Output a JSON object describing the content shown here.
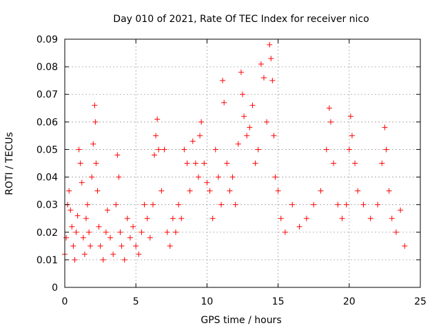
{
  "chart_data": {
    "type": "scatter",
    "title": "Day 010 of 2021, Rate Of TEC Index for receiver nico",
    "xlabel": "GPS time / hours",
    "ylabel": "ROTI / TECUs",
    "xlim": [
      0,
      25
    ],
    "ylim": [
      0,
      0.09
    ],
    "x_ticks": [
      0,
      5,
      10,
      15,
      20,
      25
    ],
    "x_tick_labels": [
      "0",
      "5",
      "10",
      "15",
      "20",
      "25"
    ],
    "y_ticks": [
      0,
      0.01,
      0.02,
      0.03,
      0.04,
      0.05,
      0.06,
      0.07,
      0.08,
      0.09
    ],
    "y_tick_labels": [
      "0",
      "0.01",
      "0.02",
      "0.03",
      "0.04",
      "0.05",
      "0.06",
      "0.07",
      "0.08",
      "0.09"
    ],
    "grid": true,
    "marker": "+",
    "marker_color": "#ff0000",
    "series": [
      {
        "points": [
          [
            0.0,
            0.012
          ],
          [
            0.1,
            0.018
          ],
          [
            0.2,
            0.03
          ],
          [
            0.3,
            0.035
          ],
          [
            0.4,
            0.028
          ],
          [
            0.5,
            0.022
          ],
          [
            0.6,
            0.015
          ],
          [
            0.7,
            0.01
          ],
          [
            0.8,
            0.02
          ],
          [
            0.9,
            0.026
          ],
          [
            1.0,
            0.05
          ],
          [
            1.1,
            0.045
          ],
          [
            1.2,
            0.038
          ],
          [
            1.3,
            0.018
          ],
          [
            1.4,
            0.012
          ],
          [
            1.5,
            0.025
          ],
          [
            1.6,
            0.03
          ],
          [
            1.7,
            0.02
          ],
          [
            1.8,
            0.015
          ],
          [
            1.9,
            0.04
          ],
          [
            2.0,
            0.052
          ],
          [
            2.1,
            0.066
          ],
          [
            2.15,
            0.06
          ],
          [
            2.2,
            0.045
          ],
          [
            2.3,
            0.035
          ],
          [
            2.4,
            0.022
          ],
          [
            2.5,
            0.015
          ],
          [
            2.7,
            0.01
          ],
          [
            2.9,
            0.02
          ],
          [
            3.0,
            0.028
          ],
          [
            3.2,
            0.018
          ],
          [
            3.4,
            0.012
          ],
          [
            3.6,
            0.03
          ],
          [
            3.7,
            0.048
          ],
          [
            3.8,
            0.04
          ],
          [
            3.9,
            0.02
          ],
          [
            4.0,
            0.015
          ],
          [
            4.2,
            0.01
          ],
          [
            4.4,
            0.025
          ],
          [
            4.6,
            0.018
          ],
          [
            4.8,
            0.022
          ],
          [
            5.0,
            0.015
          ],
          [
            5.2,
            0.012
          ],
          [
            5.4,
            0.02
          ],
          [
            5.6,
            0.03
          ],
          [
            5.8,
            0.025
          ],
          [
            6.0,
            0.018
          ],
          [
            6.2,
            0.03
          ],
          [
            6.3,
            0.048
          ],
          [
            6.4,
            0.055
          ],
          [
            6.5,
            0.061
          ],
          [
            6.6,
            0.05
          ],
          [
            6.8,
            0.035
          ],
          [
            7.0,
            0.05
          ],
          [
            7.2,
            0.02
          ],
          [
            7.4,
            0.015
          ],
          [
            7.6,
            0.025
          ],
          [
            7.8,
            0.02
          ],
          [
            8.0,
            0.03
          ],
          [
            8.2,
            0.025
          ],
          [
            8.4,
            0.05
          ],
          [
            8.6,
            0.045
          ],
          [
            8.8,
            0.035
          ],
          [
            9.0,
            0.053
          ],
          [
            9.2,
            0.045
          ],
          [
            9.4,
            0.04
          ],
          [
            9.5,
            0.055
          ],
          [
            9.6,
            0.06
          ],
          [
            9.8,
            0.045
          ],
          [
            10.0,
            0.038
          ],
          [
            10.2,
            0.035
          ],
          [
            10.4,
            0.025
          ],
          [
            10.6,
            0.05
          ],
          [
            10.8,
            0.04
          ],
          [
            11.0,
            0.03
          ],
          [
            11.1,
            0.075
          ],
          [
            11.2,
            0.067
          ],
          [
            11.4,
            0.045
          ],
          [
            11.6,
            0.035
          ],
          [
            11.8,
            0.04
          ],
          [
            12.0,
            0.03
          ],
          [
            12.2,
            0.052
          ],
          [
            12.4,
            0.078
          ],
          [
            12.5,
            0.07
          ],
          [
            12.6,
            0.062
          ],
          [
            12.8,
            0.055
          ],
          [
            13.0,
            0.058
          ],
          [
            13.2,
            0.066
          ],
          [
            13.4,
            0.045
          ],
          [
            13.6,
            0.05
          ],
          [
            13.8,
            0.081
          ],
          [
            14.0,
            0.076
          ],
          [
            14.2,
            0.06
          ],
          [
            14.4,
            0.088
          ],
          [
            14.5,
            0.083
          ],
          [
            14.6,
            0.075
          ],
          [
            14.7,
            0.055
          ],
          [
            14.8,
            0.04
          ],
          [
            15.0,
            0.035
          ],
          [
            15.2,
            0.025
          ],
          [
            15.5,
            0.02
          ],
          [
            16.0,
            0.03
          ],
          [
            16.5,
            0.022
          ],
          [
            17.0,
            0.025
          ],
          [
            17.5,
            0.03
          ],
          [
            18.0,
            0.035
          ],
          [
            18.4,
            0.05
          ],
          [
            18.6,
            0.065
          ],
          [
            18.7,
            0.06
          ],
          [
            18.9,
            0.045
          ],
          [
            19.2,
            0.03
          ],
          [
            19.5,
            0.025
          ],
          [
            19.8,
            0.03
          ],
          [
            20.0,
            0.05
          ],
          [
            20.1,
            0.062
          ],
          [
            20.2,
            0.055
          ],
          [
            20.4,
            0.045
          ],
          [
            20.6,
            0.035
          ],
          [
            21.0,
            0.03
          ],
          [
            21.5,
            0.025
          ],
          [
            22.0,
            0.03
          ],
          [
            22.3,
            0.045
          ],
          [
            22.5,
            0.058
          ],
          [
            22.6,
            0.05
          ],
          [
            22.8,
            0.035
          ],
          [
            23.0,
            0.025
          ],
          [
            23.3,
            0.02
          ],
          [
            23.6,
            0.028
          ],
          [
            23.9,
            0.015
          ]
        ]
      }
    ]
  }
}
